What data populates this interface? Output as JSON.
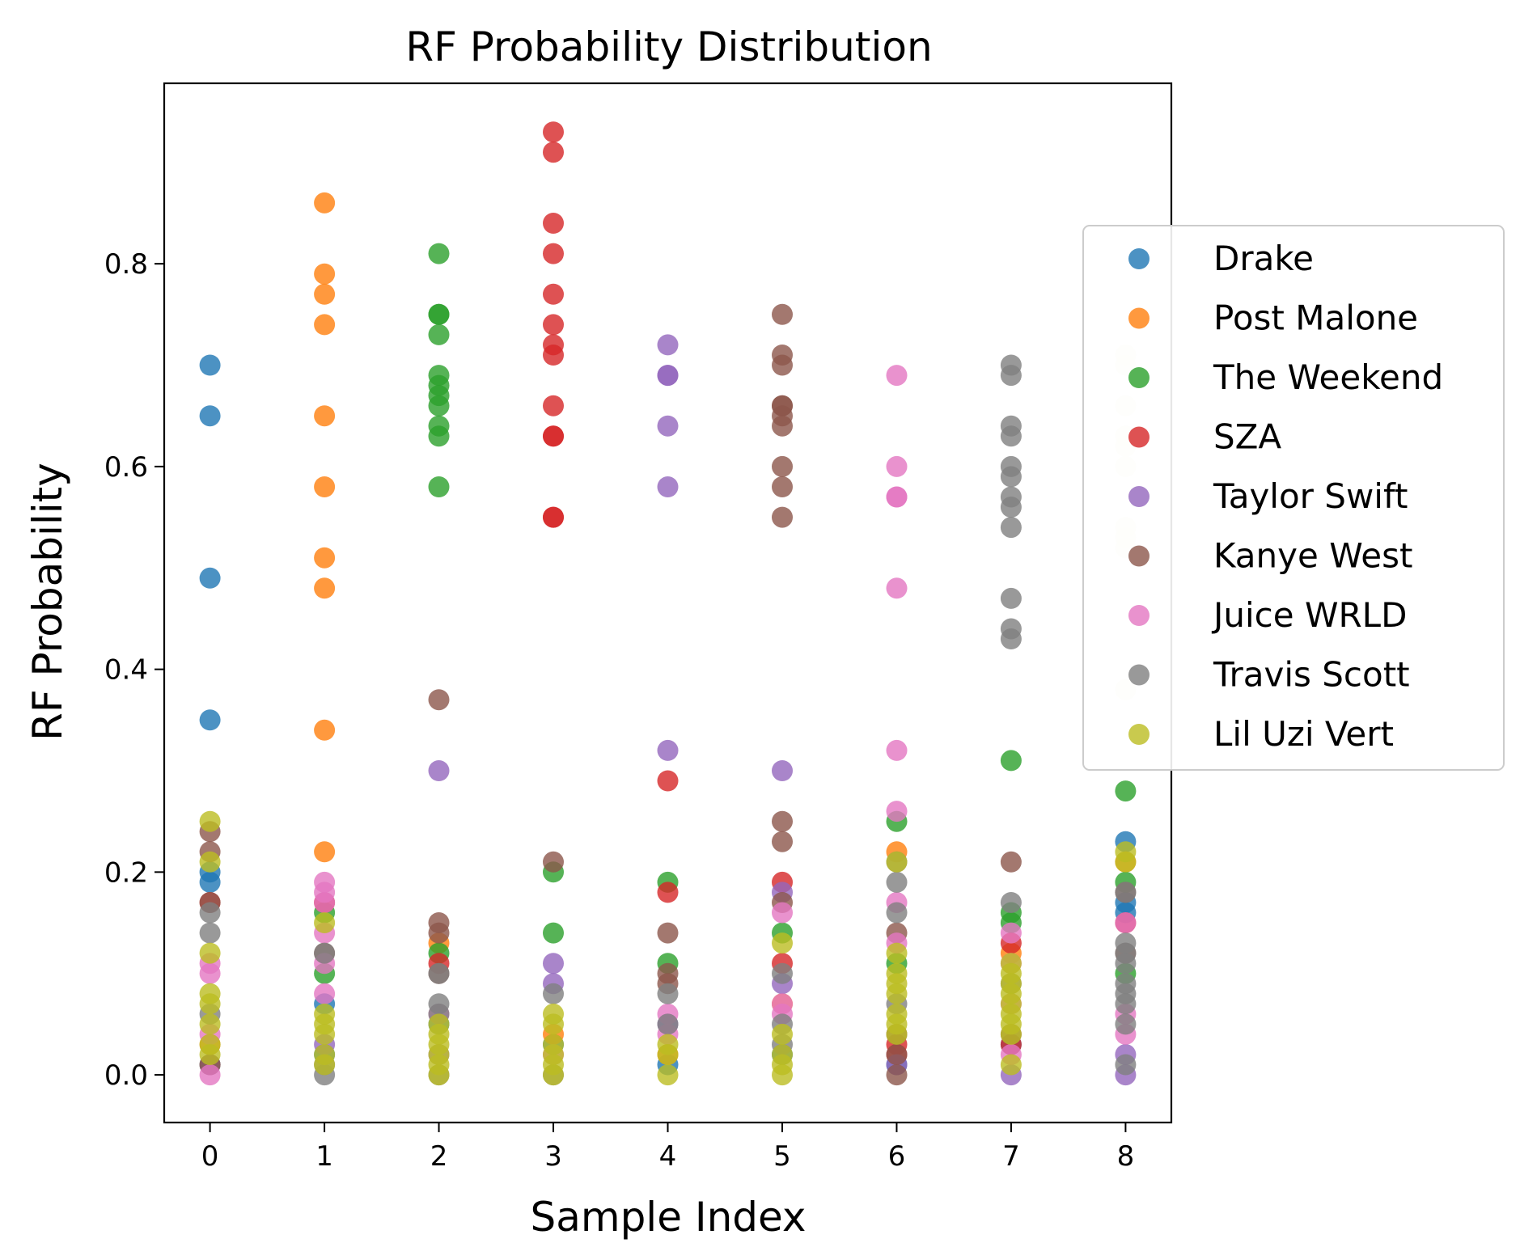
{
  "chart_data": {
    "type": "scatter",
    "title": "RF Probability Distribution",
    "xlabel": "Sample Index",
    "ylabel": "RF Probability",
    "xlim": [
      -0.4,
      8.4
    ],
    "ylim": [
      -0.047,
      0.978
    ],
    "x_ticks": [
      0,
      1,
      2,
      3,
      4,
      5,
      6,
      7,
      8
    ],
    "y_ticks": [
      0.0,
      0.2,
      0.4,
      0.6,
      0.8
    ],
    "legend_position": "right",
    "grid": false,
    "series": [
      {
        "name": "Drake",
        "color": "#1f77b4",
        "points": [
          [
            0,
            0.7
          ],
          [
            0,
            0.65
          ],
          [
            0,
            0.49
          ],
          [
            0,
            0.35
          ],
          [
            0,
            0.19
          ],
          [
            0,
            0.2
          ],
          [
            1,
            0.07
          ],
          [
            1,
            0.02
          ],
          [
            2,
            0.05
          ],
          [
            3,
            0.03
          ],
          [
            4,
            0.01
          ],
          [
            5,
            0.02
          ],
          [
            6,
            0.01
          ],
          [
            7,
            0.03
          ],
          [
            8,
            0.23
          ],
          [
            8,
            0.17
          ],
          [
            8,
            0.16
          ]
        ]
      },
      {
        "name": "Post Malone",
        "color": "#ff7f0e",
        "points": [
          [
            0,
            0.03
          ],
          [
            1,
            0.86
          ],
          [
            1,
            0.79
          ],
          [
            1,
            0.77
          ],
          [
            1,
            0.74
          ],
          [
            1,
            0.65
          ],
          [
            1,
            0.58
          ],
          [
            1,
            0.51
          ],
          [
            1,
            0.48
          ],
          [
            1,
            0.34
          ],
          [
            1,
            0.22
          ],
          [
            2,
            0.13
          ],
          [
            3,
            0.04
          ],
          [
            4,
            0.02
          ],
          [
            5,
            0.07
          ],
          [
            6,
            0.22
          ],
          [
            7,
            0.12
          ],
          [
            8,
            0.21
          ]
        ]
      },
      {
        "name": "The Weekend",
        "color": "#2ca02c",
        "points": [
          [
            0,
            0.01
          ],
          [
            1,
            0.1
          ],
          [
            1,
            0.16
          ],
          [
            2,
            0.81
          ],
          [
            2,
            0.75
          ],
          [
            2,
            0.75
          ],
          [
            2,
            0.73
          ],
          [
            2,
            0.69
          ],
          [
            2,
            0.68
          ],
          [
            2,
            0.67
          ],
          [
            2,
            0.66
          ],
          [
            2,
            0.64
          ],
          [
            2,
            0.63
          ],
          [
            2,
            0.58
          ],
          [
            2,
            0.12
          ],
          [
            3,
            0.2
          ],
          [
            3,
            0.14
          ],
          [
            4,
            0.19
          ],
          [
            4,
            0.11
          ],
          [
            5,
            0.14
          ],
          [
            6,
            0.25
          ],
          [
            6,
            0.11
          ],
          [
            7,
            0.31
          ],
          [
            7,
            0.16
          ],
          [
            7,
            0.15
          ],
          [
            8,
            0.28
          ],
          [
            8,
            0.19
          ],
          [
            8,
            0.1
          ]
        ]
      },
      {
        "name": "SZA",
        "color": "#d62728",
        "points": [
          [
            0,
            0.17
          ],
          [
            1,
            0.17
          ],
          [
            2,
            0.11
          ],
          [
            3,
            0.93
          ],
          [
            3,
            0.91
          ],
          [
            3,
            0.84
          ],
          [
            3,
            0.81
          ],
          [
            3,
            0.77
          ],
          [
            3,
            0.74
          ],
          [
            3,
            0.72
          ],
          [
            3,
            0.71
          ],
          [
            3,
            0.66
          ],
          [
            3,
            0.63
          ],
          [
            3,
            0.63
          ],
          [
            3,
            0.55
          ],
          [
            3,
            0.55
          ],
          [
            4,
            0.29
          ],
          [
            4,
            0.18
          ],
          [
            5,
            0.19
          ],
          [
            5,
            0.11
          ],
          [
            6,
            0.03
          ],
          [
            6,
            0.02
          ],
          [
            7,
            0.13
          ],
          [
            7,
            0.03
          ],
          [
            8,
            0.15
          ]
        ]
      },
      {
        "name": "Taylor Swift",
        "color": "#9467bd",
        "points": [
          [
            0,
            0.01
          ],
          [
            1,
            0.03
          ],
          [
            2,
            0.3
          ],
          [
            2,
            0.02
          ],
          [
            3,
            0.11
          ],
          [
            3,
            0.09
          ],
          [
            4,
            0.72
          ],
          [
            4,
            0.69
          ],
          [
            4,
            0.69
          ],
          [
            4,
            0.64
          ],
          [
            4,
            0.58
          ],
          [
            4,
            0.32
          ],
          [
            4,
            0.05
          ],
          [
            5,
            0.3
          ],
          [
            5,
            0.18
          ],
          [
            5,
            0.09
          ],
          [
            6,
            0.01
          ],
          [
            7,
            0.0
          ],
          [
            8,
            0.0
          ],
          [
            8,
            0.02
          ]
        ]
      },
      {
        "name": "Kanye West",
        "color": "#8c564b",
        "points": [
          [
            0,
            0.24
          ],
          [
            0,
            0.22
          ],
          [
            0,
            0.17
          ],
          [
            0,
            0.01
          ],
          [
            1,
            0.12
          ],
          [
            2,
            0.37
          ],
          [
            2,
            0.15
          ],
          [
            2,
            0.14
          ],
          [
            2,
            0.1
          ],
          [
            3,
            0.21
          ],
          [
            4,
            0.14
          ],
          [
            4,
            0.1
          ],
          [
            4,
            0.09
          ],
          [
            5,
            0.75
          ],
          [
            5,
            0.71
          ],
          [
            5,
            0.7
          ],
          [
            5,
            0.66
          ],
          [
            5,
            0.66
          ],
          [
            5,
            0.65
          ],
          [
            5,
            0.64
          ],
          [
            5,
            0.6
          ],
          [
            5,
            0.58
          ],
          [
            5,
            0.55
          ],
          [
            5,
            0.25
          ],
          [
            5,
            0.23
          ],
          [
            5,
            0.17
          ],
          [
            6,
            0.14
          ],
          [
            6,
            0.04
          ],
          [
            6,
            0.02
          ],
          [
            6,
            0.0
          ],
          [
            7,
            0.21
          ],
          [
            7,
            0.04
          ],
          [
            8,
            0.18
          ],
          [
            8,
            0.12
          ]
        ]
      },
      {
        "name": "Juice WRLD",
        "color": "#e377c2",
        "points": [
          [
            0,
            0.1
          ],
          [
            0,
            0.11
          ],
          [
            0,
            0.04
          ],
          [
            0,
            0.0
          ],
          [
            1,
            0.19
          ],
          [
            1,
            0.18
          ],
          [
            1,
            0.17
          ],
          [
            1,
            0.14
          ],
          [
            1,
            0.11
          ],
          [
            1,
            0.08
          ],
          [
            2,
            0.06
          ],
          [
            3,
            0.02
          ],
          [
            4,
            0.04
          ],
          [
            4,
            0.06
          ],
          [
            5,
            0.16
          ],
          [
            5,
            0.07
          ],
          [
            5,
            0.06
          ],
          [
            6,
            0.69
          ],
          [
            6,
            0.6
          ],
          [
            6,
            0.57
          ],
          [
            6,
            0.57
          ],
          [
            6,
            0.48
          ],
          [
            6,
            0.32
          ],
          [
            6,
            0.26
          ],
          [
            6,
            0.17
          ],
          [
            6,
            0.13
          ],
          [
            7,
            0.14
          ],
          [
            7,
            0.11
          ],
          [
            7,
            0.07
          ],
          [
            7,
            0.02
          ],
          [
            8,
            0.15
          ],
          [
            8,
            0.06
          ],
          [
            8,
            0.04
          ]
        ]
      },
      {
        "name": "Travis Scott",
        "color": "#7f7f7f",
        "points": [
          [
            0,
            0.16
          ],
          [
            0,
            0.14
          ],
          [
            0,
            0.06
          ],
          [
            1,
            0.12
          ],
          [
            1,
            0.01
          ],
          [
            1,
            0.0
          ],
          [
            2,
            0.1
          ],
          [
            2,
            0.07
          ],
          [
            2,
            0.06
          ],
          [
            2,
            0.0
          ],
          [
            3,
            0.08
          ],
          [
            3,
            0.0
          ],
          [
            4,
            0.08
          ],
          [
            4,
            0.05
          ],
          [
            5,
            0.1
          ],
          [
            5,
            0.05
          ],
          [
            5,
            0.03
          ],
          [
            6,
            0.21
          ],
          [
            6,
            0.19
          ],
          [
            6,
            0.16
          ],
          [
            6,
            0.07
          ],
          [
            7,
            0.7
          ],
          [
            7,
            0.69
          ],
          [
            7,
            0.64
          ],
          [
            7,
            0.63
          ],
          [
            7,
            0.6
          ],
          [
            7,
            0.59
          ],
          [
            7,
            0.57
          ],
          [
            7,
            0.56
          ],
          [
            7,
            0.54
          ],
          [
            7,
            0.47
          ],
          [
            7,
            0.44
          ],
          [
            7,
            0.43
          ],
          [
            7,
            0.17
          ],
          [
            7,
            0.09
          ],
          [
            8,
            0.18
          ],
          [
            8,
            0.13
          ],
          [
            8,
            0.12
          ],
          [
            8,
            0.11
          ],
          [
            8,
            0.09
          ],
          [
            8,
            0.08
          ],
          [
            8,
            0.07
          ],
          [
            8,
            0.05
          ],
          [
            8,
            0.01
          ]
        ]
      },
      {
        "name": "Lil Uzi Vert",
        "color": "#bcbd22",
        "points": [
          [
            0,
            0.25
          ],
          [
            0,
            0.21
          ],
          [
            0,
            0.12
          ],
          [
            0,
            0.08
          ],
          [
            0,
            0.07
          ],
          [
            0,
            0.05
          ],
          [
            0,
            0.03
          ],
          [
            0,
            0.02
          ],
          [
            1,
            0.15
          ],
          [
            1,
            0.06
          ],
          [
            1,
            0.05
          ],
          [
            1,
            0.04
          ],
          [
            1,
            0.02
          ],
          [
            1,
            0.01
          ],
          [
            2,
            0.05
          ],
          [
            2,
            0.04
          ],
          [
            2,
            0.03
          ],
          [
            2,
            0.02
          ],
          [
            2,
            0.01
          ],
          [
            2,
            0.0
          ],
          [
            3,
            0.06
          ],
          [
            3,
            0.05
          ],
          [
            3,
            0.03
          ],
          [
            3,
            0.02
          ],
          [
            3,
            0.01
          ],
          [
            3,
            0.0
          ],
          [
            4,
            0.03
          ],
          [
            4,
            0.02
          ],
          [
            4,
            0.0
          ],
          [
            5,
            0.13
          ],
          [
            5,
            0.04
          ],
          [
            5,
            0.02
          ],
          [
            5,
            0.01
          ],
          [
            5,
            0.0
          ],
          [
            6,
            0.21
          ],
          [
            6,
            0.12
          ],
          [
            6,
            0.1
          ],
          [
            6,
            0.09
          ],
          [
            6,
            0.08
          ],
          [
            6,
            0.06
          ],
          [
            6,
            0.05
          ],
          [
            6,
            0.04
          ],
          [
            7,
            0.11
          ],
          [
            7,
            0.1
          ],
          [
            7,
            0.09
          ],
          [
            7,
            0.08
          ],
          [
            7,
            0.07
          ],
          [
            7,
            0.06
          ],
          [
            7,
            0.05
          ],
          [
            7,
            0.04
          ],
          [
            7,
            0.01
          ],
          [
            8,
            0.22
          ],
          [
            8,
            0.21
          ]
        ]
      },
      {
        "name": "",
        "color": "#eeeed5",
        "points": [
          [
            8,
            0.71
          ],
          [
            8,
            0.7
          ],
          [
            8,
            0.66
          ],
          [
            8,
            0.63
          ],
          [
            8,
            0.62
          ],
          [
            8,
            0.6
          ],
          [
            8,
            0.54
          ],
          [
            8,
            0.53
          ],
          [
            8,
            0.52
          ],
          [
            8,
            0.38
          ]
        ]
      }
    ],
    "legend": [
      "Drake",
      "Post Malone",
      "The Weekend",
      "SZA",
      "Taylor Swift",
      "Kanye West",
      "Juice WRLD",
      "Travis Scott",
      "Lil Uzi Vert"
    ]
  }
}
